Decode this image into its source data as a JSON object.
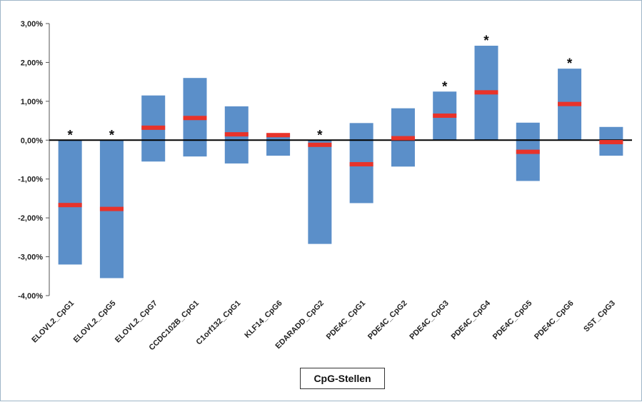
{
  "chart_data": {
    "type": "bar",
    "subtype": "floating-range-with-median",
    "xlabel": "CpG-Stellen",
    "ylabel": "",
    "ylim": [
      -4,
      3
    ],
    "yticks": [
      3,
      2,
      1,
      0,
      -1,
      -2,
      -3,
      -4
    ],
    "ytick_labels": [
      "3,00%",
      "2,00%",
      "1,00%",
      "0,00%",
      "-1,00%",
      "-2,00%",
      "-3,00%",
      "-4,00%"
    ],
    "grid": false,
    "legend": "none",
    "colors": {
      "bar": "#5b8fc9",
      "median": "#e8332a",
      "zero_line": "#000000"
    },
    "categories": [
      "ELOVL2_CpG1",
      "ELOVL2_CpG5",
      "ELOVL2_CpG7",
      "CCDC102B_CpG1",
      "C1orf132_CpG1",
      "KLF14_CpG6",
      "EDARADD_CpG2",
      "PDE4C_CpG1",
      "PDE4C_CpG2",
      "PDE4C_CpG3",
      "PDE4C_CpG4",
      "PDE4C_CpG5",
      "PDE4C_CpG6",
      "SST_CpG3"
    ],
    "low": [
      -3.2,
      -3.55,
      -0.55,
      -0.42,
      -0.6,
      -0.4,
      -2.67,
      -1.62,
      -0.68,
      0.0,
      0.0,
      -1.05,
      0.0,
      -0.4
    ],
    "high": [
      0.0,
      0.0,
      1.15,
      1.6,
      0.87,
      0.17,
      0.0,
      0.44,
      0.82,
      1.25,
      2.43,
      0.45,
      1.84,
      0.34
    ],
    "median": [
      -1.67,
      -1.77,
      0.32,
      0.57,
      0.15,
      0.13,
      -0.12,
      -0.62,
      0.05,
      0.63,
      1.23,
      -0.3,
      0.93,
      -0.05
    ],
    "significant": [
      true,
      true,
      false,
      false,
      false,
      false,
      true,
      false,
      false,
      true,
      true,
      false,
      true,
      false
    ],
    "significance_marker": "*"
  }
}
